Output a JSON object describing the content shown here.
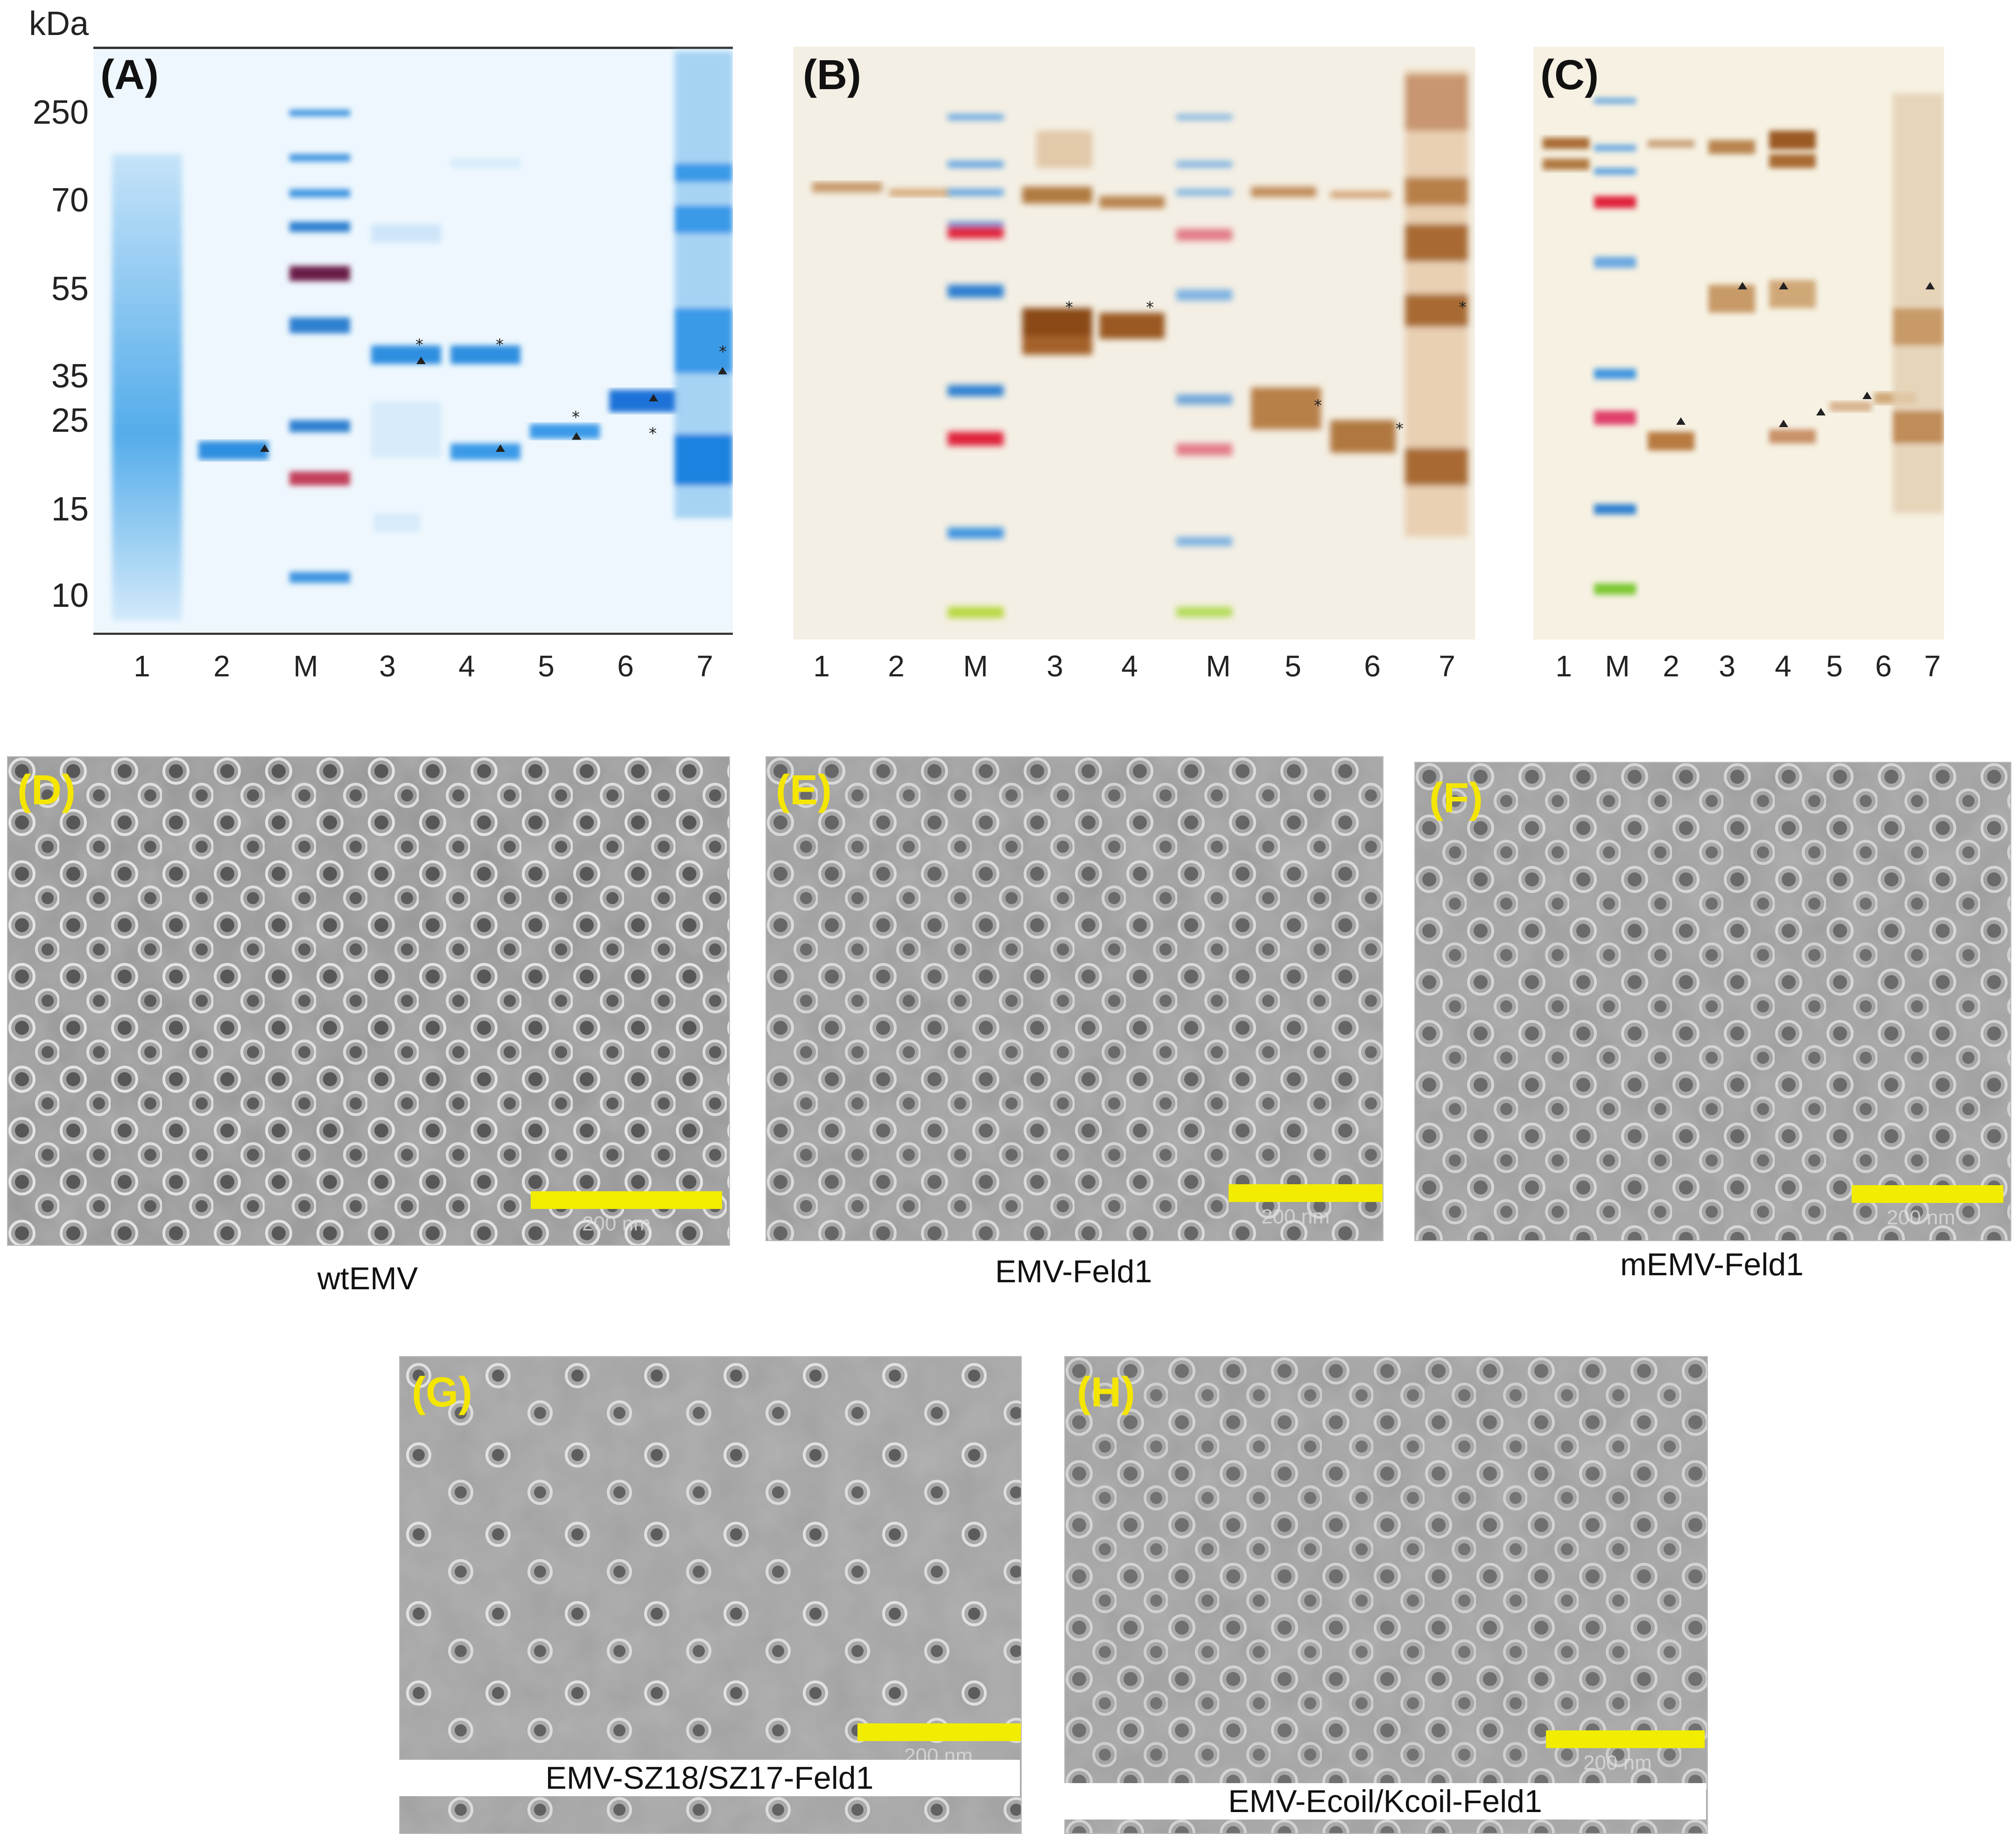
{
  "kda_unit": "kDa",
  "kda_markers": [
    "250",
    "70",
    "55",
    "35",
    "25",
    "15",
    "10"
  ],
  "panels": {
    "A": {
      "letter": "(A)",
      "lanes": [
        "1",
        "2",
        "M",
        "3",
        "4",
        "5",
        "6",
        "7"
      ]
    },
    "B": {
      "letter": "(B)",
      "lanes": [
        "1",
        "2",
        "M",
        "3",
        "4",
        "M",
        "5",
        "6",
        "7"
      ]
    },
    "C": {
      "letter": "(C)",
      "lanes": [
        "1",
        "M",
        "2",
        "3",
        "4",
        "5",
        "6",
        "7"
      ]
    }
  },
  "em_panels": [
    {
      "letter": "(D)",
      "caption": "wtEMV",
      "scale": "200 nm"
    },
    {
      "letter": "(E)",
      "caption": "EMV-Feld1",
      "scale": "200 nm"
    },
    {
      "letter": "(F)",
      "caption": "mEMV-Feld1",
      "scale": "200 nm"
    },
    {
      "letter": "(G)",
      "caption": "EMV-SZ18/SZ17-Feld1",
      "scale": "200 nm"
    },
    {
      "letter": "(H)",
      "caption": "EMV-Ecoil/Kcoil-Feld1",
      "scale": "200 nm"
    }
  ],
  "colors": {
    "coomassie": "#2d8fe0",
    "western": "#a4622a",
    "marker_red": "#e0203a",
    "marker_green": "#7dd430",
    "marker_purple": "#6a1a4a",
    "scalebar": "#f2ec00",
    "em_letter": "#f5e600"
  }
}
